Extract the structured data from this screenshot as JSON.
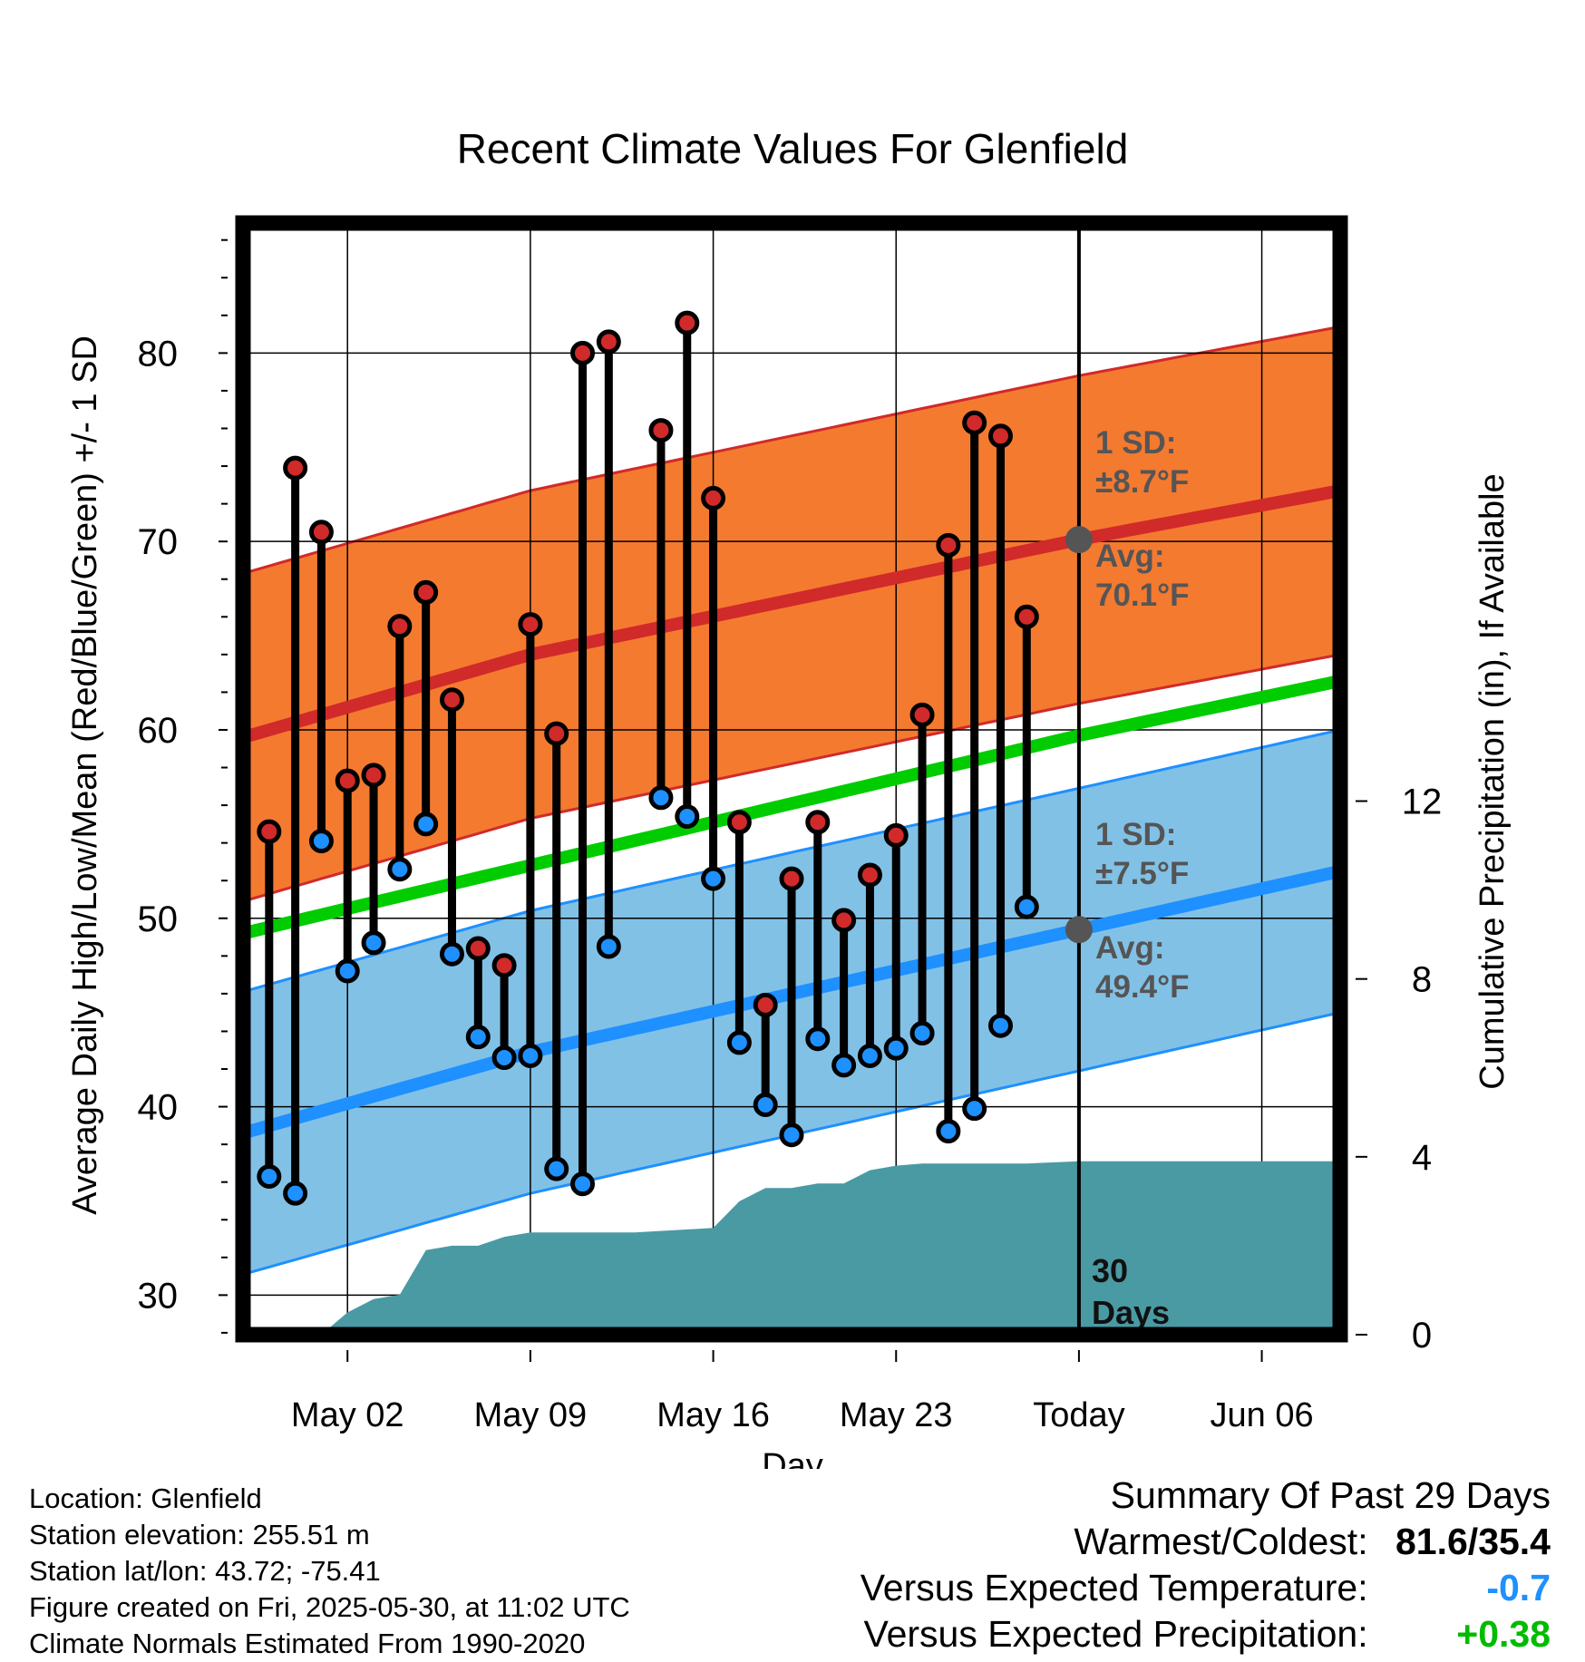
{
  "chart_data": {
    "type": "line",
    "title": "Recent Climate Values For Glenfield",
    "xlabel": "Day",
    "ylabel": "Average Daily High/Low/Mean (Red/Blue/Green) +/- 1 SD",
    "y2label": "Cumulative Precipitation (in), If Available",
    "x_tick_labels": [
      "May 02",
      "May 09",
      "May 16",
      "May 23",
      "Today",
      "Jun 06"
    ],
    "y_ticks": [
      30,
      40,
      50,
      60,
      70,
      80
    ],
    "y2_ticks": [
      0,
      4,
      8,
      12
    ],
    "ylim": [
      27.9,
      86.9
    ],
    "y2lim": [
      0,
      25
    ],
    "xlim": [
      "2025-04-28",
      "2025-06-09"
    ],
    "today": "2025-05-30",
    "window_label": "30 Days",
    "normal_high": {
      "name": "Average High",
      "x": [
        "2025-04-28",
        "2025-05-09",
        "2025-05-30",
        "2025-06-09"
      ],
      "values": [
        59.6,
        64.0,
        70.1,
        72.7
      ],
      "sd_label": "1 SD:",
      "sd_value": "±8.7°F",
      "avg_label": "Avg:",
      "avg_value": "70.1°F",
      "sd": 8.7,
      "color": "#d12a2a",
      "band_color": "#f47a30"
    },
    "normal_low": {
      "name": "Average Low",
      "x": [
        "2025-04-28",
        "2025-05-09",
        "2025-05-30",
        "2025-06-09"
      ],
      "values": [
        38.6,
        42.9,
        49.4,
        52.5
      ],
      "sd_label": "1 SD:",
      "sd_value": "±7.5°F",
      "avg_label": "Avg:",
      "avg_value": "49.4°F",
      "sd": 7.5,
      "color": "#1e90ff",
      "band_color": "#82c1e6"
    },
    "normal_mean": {
      "name": "Average Mean",
      "x": [
        "2025-04-28",
        "2025-05-30",
        "2025-06-09"
      ],
      "values": [
        49.2,
        59.7,
        62.6
      ],
      "color": "#00cc00"
    },
    "daily": {
      "dates": [
        "2025-04-29",
        "2025-04-30",
        "2025-05-01",
        "2025-05-02",
        "2025-05-03",
        "2025-05-04",
        "2025-05-05",
        "2025-05-06",
        "2025-05-07",
        "2025-05-08",
        "2025-05-09",
        "2025-05-10",
        "2025-05-11",
        "2025-05-12",
        "2025-05-14",
        "2025-05-15",
        "2025-05-16",
        "2025-05-17",
        "2025-05-18",
        "2025-05-19",
        "2025-05-20",
        "2025-05-21",
        "2025-05-22",
        "2025-05-23",
        "2025-05-24",
        "2025-05-25",
        "2025-05-26",
        "2025-05-27",
        "2025-05-28"
      ],
      "highs": [
        54.6,
        73.9,
        70.5,
        57.3,
        57.6,
        65.5,
        67.3,
        61.6,
        48.4,
        47.5,
        65.6,
        59.8,
        80.0,
        80.6,
        75.9,
        81.6,
        72.3,
        55.1,
        45.4,
        52.1,
        55.1,
        49.9,
        52.3,
        54.4,
        60.8,
        69.8,
        76.3,
        75.6,
        66.0
      ],
      "lows": [
        36.3,
        35.4,
        54.1,
        47.2,
        48.7,
        52.6,
        55.0,
        48.1,
        43.7,
        42.6,
        42.7,
        36.7,
        35.9,
        48.5,
        56.4,
        55.4,
        52.1,
        43.4,
        40.1,
        38.5,
        43.6,
        42.2,
        42.7,
        43.1,
        43.9,
        38.7,
        39.9,
        44.3,
        50.6
      ],
      "high_color": "#d12a2a",
      "low_color": "#1e90ff"
    },
    "precipitation": {
      "name": "Cumulative Precipitation",
      "x": [
        "2025-05-01",
        "2025-05-02",
        "2025-05-03",
        "2025-05-04",
        "2025-05-05",
        "2025-05-06",
        "2025-05-07",
        "2025-05-08",
        "2025-05-09",
        "2025-05-10",
        "2025-05-13",
        "2025-05-16",
        "2025-05-17",
        "2025-05-18",
        "2025-05-19",
        "2025-05-20",
        "2025-05-21",
        "2025-05-22",
        "2025-05-23",
        "2025-05-24",
        "2025-05-25",
        "2025-05-28",
        "2025-05-30",
        "2025-06-09"
      ],
      "values": [
        0.0,
        0.5,
        0.8,
        0.9,
        1.9,
        2.0,
        2.0,
        2.2,
        2.3,
        2.3,
        2.3,
        2.4,
        3.0,
        3.3,
        3.3,
        3.4,
        3.4,
        3.7,
        3.8,
        3.85,
        3.85,
        3.85,
        3.9,
        3.9
      ],
      "color": "#4a9aa4"
    }
  },
  "info": {
    "location": "Location: Glenfield",
    "elevation": "Station elevation: 255.51 m",
    "latlon": "Station lat/lon: 43.72; -75.41",
    "created": "Figure created on Fri, 2025-05-30, at 11:02 UTC",
    "normals": "Climate Normals Estimated From 1990-2020"
  },
  "summary": {
    "heading": "Summary Of Past 29 Days",
    "warm_cold_label": "Warmest/Coldest:",
    "warm_cold_value": "81.6/35.4",
    "temp_label": "Versus Expected Temperature:",
    "temp_value": "-0.7",
    "temp_color": "#1e90ff",
    "precip_label": "Versus Expected Precipitation:",
    "precip_value": "+0.38",
    "precip_color": "#00bb00"
  }
}
